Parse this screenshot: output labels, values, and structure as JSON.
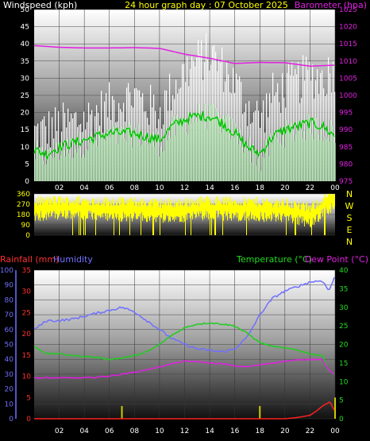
{
  "chart_data": [
    {
      "type": "line",
      "title": "24 hour graph day : 07 October 2025",
      "ylabel": "Windspeed (kph)",
      "y2label": "Barometer (hpa)",
      "x_ticks": [
        "02",
        "04",
        "06",
        "08",
        "10",
        "12",
        "14",
        "16",
        "18",
        "20",
        "22",
        "00"
      ],
      "ylim": [
        0,
        50
      ],
      "y_ticks": [
        "0",
        "5",
        "10",
        "15",
        "20",
        "25",
        "30",
        "35",
        "40",
        "45",
        "50"
      ],
      "y2lim": [
        975,
        1025
      ],
      "y2_ticks": [
        "975",
        "980",
        "985",
        "990",
        "995",
        "1000",
        "1005",
        "1010",
        "1015",
        "1020",
        "1025"
      ],
      "colors": {
        "gust": "#ffffff",
        "wind": "#c8f5c8",
        "avg": "#00cc00",
        "baro": "#e020e0",
        "title": "#ffff00",
        "ylabel": "#ffffff",
        "y2label": "#e020e0"
      },
      "series": [
        {
          "name": "gust",
          "hours": [
            0,
            1,
            2,
            3,
            4,
            5,
            6,
            7,
            8,
            9,
            10,
            11,
            12,
            13,
            14,
            15,
            16,
            17,
            18,
            19,
            20,
            21,
            22,
            23,
            24
          ],
          "values": [
            14,
            15,
            16,
            17,
            18,
            20,
            22,
            24,
            25,
            22,
            20,
            27,
            32,
            35,
            37,
            33,
            28,
            22,
            18,
            25,
            27,
            29,
            31,
            30,
            33
          ]
        },
        {
          "name": "wind",
          "hours": [
            0,
            1,
            2,
            3,
            4,
            5,
            6,
            7,
            8,
            9,
            10,
            11,
            12,
            13,
            14,
            15,
            16,
            17,
            18,
            19,
            20,
            21,
            22,
            23,
            24
          ],
          "values": [
            8,
            7,
            9,
            10,
            11,
            12,
            13,
            13,
            14,
            12,
            11,
            15,
            17,
            19,
            19,
            17,
            14,
            10,
            6,
            12,
            14,
            15,
            16,
            15,
            14
          ]
        },
        {
          "name": "avg",
          "hours": [
            0,
            1,
            2,
            3,
            4,
            5,
            6,
            7,
            8,
            9,
            10,
            11,
            12,
            13,
            14,
            15,
            16,
            17,
            18,
            19,
            20,
            21,
            22,
            23,
            24
          ],
          "values": [
            9,
            8,
            10,
            11,
            12,
            13,
            14,
            14,
            14,
            13,
            12,
            16,
            18,
            19,
            19,
            17,
            14,
            10,
            8,
            13,
            15,
            16,
            17,
            16,
            13
          ]
        },
        {
          "name": "barometer",
          "hours": [
            0,
            2,
            4,
            6,
            8,
            10,
            12,
            14,
            16,
            18,
            20,
            22,
            24
          ],
          "values": [
            1014.5,
            1014,
            1013.8,
            1013.8,
            1013.9,
            1013.7,
            1012,
            1010.8,
            1009.3,
            1009.6,
            1009.5,
            1008.5,
            1008.8
          ]
        }
      ]
    },
    {
      "type": "line",
      "title": "",
      "ylim": [
        0,
        360
      ],
      "y_ticks": [
        "0",
        "90",
        "180",
        "270",
        "360"
      ],
      "compass": [
        "N",
        "W",
        "S",
        "E",
        "N"
      ],
      "x_ticks": [
        "02",
        "04",
        "06",
        "08",
        "10",
        "12",
        "14",
        "16",
        "18",
        "20",
        "22",
        "00"
      ],
      "colors": {
        "direction": "#ffff00",
        "compass": "#ffff00"
      },
      "series": [
        {
          "name": "direction",
          "hours": [
            0,
            2,
            4,
            6,
            8,
            10,
            12,
            14,
            16,
            18,
            20,
            22,
            24
          ],
          "values": [
            230,
            240,
            235,
            230,
            225,
            215,
            220,
            240,
            230,
            225,
            220,
            170,
            330
          ]
        }
      ]
    },
    {
      "type": "line",
      "ylabel_left1": "Rainfall (mm)",
      "ylabel_left2": "Humidity",
      "ylabel_right1": "Temperature (°C)",
      "ylabel_right2": "Dew Point (°C)",
      "x_ticks": [
        "02",
        "04",
        "06",
        "08",
        "10",
        "12",
        "14",
        "16",
        "18",
        "20",
        "22",
        "00"
      ],
      "rain_ticks": [
        "0",
        "5",
        "10",
        "15",
        "20",
        "25",
        "30",
        "35"
      ],
      "rain_lim": [
        0,
        35
      ],
      "hum_ticks": [
        "0",
        "10",
        "20",
        "30",
        "40",
        "50",
        "60",
        "70",
        "80",
        "90",
        "100"
      ],
      "hum_lim": [
        0,
        100
      ],
      "temp_ticks": [
        "0",
        "5",
        "10",
        "15",
        "20",
        "25",
        "30",
        "35",
        "40"
      ],
      "temp_lim": [
        0,
        40
      ],
      "colors": {
        "rain": "#ff2020",
        "humidity": "#7070ff",
        "temperature": "#20cc20",
        "dewpoint": "#e020e0",
        "rainrate": "#cccc00",
        "lbl_rain": "#ff3030",
        "lbl_hum": "#7070ff",
        "lbl_temp": "#20dd20",
        "lbl_dew": "#e020e0"
      },
      "series": [
        {
          "name": "humidity",
          "hours": [
            0,
            1,
            2,
            3,
            4,
            5,
            6,
            7,
            8,
            9,
            10,
            11,
            12,
            13,
            14,
            15,
            16,
            17,
            18,
            19,
            20,
            21,
            22,
            23,
            23.5,
            24
          ],
          "values": [
            60,
            66,
            66,
            67,
            69,
            71,
            73,
            75,
            72,
            66,
            60,
            54,
            50,
            47,
            46,
            45,
            47,
            55,
            70,
            81,
            86,
            89,
            92,
            93,
            86,
            96
          ]
        },
        {
          "name": "temperature",
          "hours": [
            0,
            1,
            2,
            3,
            4,
            5,
            6,
            7,
            8,
            9,
            10,
            11,
            12,
            13,
            14,
            15,
            16,
            17,
            18,
            19,
            20,
            21,
            22,
            23,
            23.5,
            24
          ],
          "values": [
            19.5,
            17.5,
            17.5,
            17,
            16.8,
            16.5,
            16,
            16.3,
            17,
            18,
            20,
            22.5,
            24.5,
            25.5,
            25.8,
            25.5,
            25,
            23,
            20.5,
            19.5,
            19,
            18.5,
            17.5,
            17,
            13,
            12
          ]
        },
        {
          "name": "dewpoint",
          "hours": [
            0,
            1,
            2,
            3,
            4,
            5,
            6,
            7,
            8,
            9,
            10,
            11,
            12,
            13,
            14,
            15,
            16,
            17,
            18,
            19,
            20,
            21,
            22,
            23,
            23.5,
            24
          ],
          "values": [
            11,
            11,
            11,
            11,
            11,
            11.2,
            11.5,
            12,
            12.5,
            13.2,
            14,
            14.8,
            15.5,
            15.4,
            15,
            14.8,
            14.2,
            14,
            14.5,
            15,
            15.5,
            15.8,
            16,
            16,
            13,
            12
          ]
        },
        {
          "name": "rain",
          "hours": [
            0,
            2,
            4,
            6,
            8,
            10,
            12,
            14,
            16,
            18,
            20,
            21,
            22,
            22.5,
            23,
            23.3,
            23.6,
            24
          ],
          "values": [
            0,
            0,
            0,
            0,
            0,
            0,
            0,
            0,
            0,
            0,
            0,
            0.3,
            0.8,
            1.8,
            3,
            3.5,
            4,
            1.6
          ]
        },
        {
          "name": "rainrate",
          "hours": [
            7,
            18,
            24
          ],
          "values": [
            3,
            3,
            5
          ]
        }
      ]
    }
  ]
}
